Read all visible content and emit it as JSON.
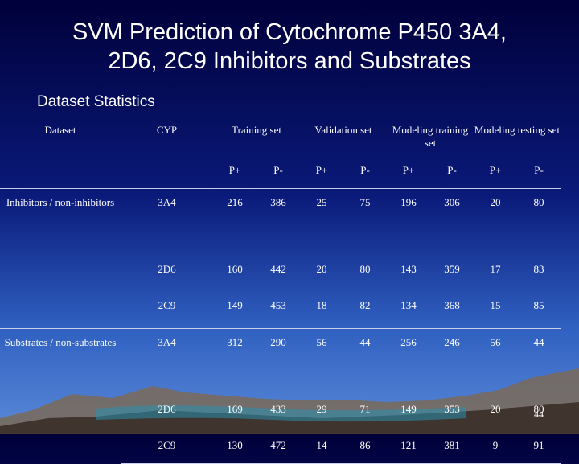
{
  "slide": {
    "title_line1": "SVM Prediction of Cytochrome P450 3A4,",
    "title_line2": "2D6, 2C9 Inhibitors and Substrates",
    "subtitle": "Dataset Statistics",
    "page_number": "44"
  },
  "table": {
    "headers": {
      "dataset": "Dataset",
      "cyp": "CYP",
      "training": "Training set",
      "validation": "Validation set",
      "modeling_training": "Modeling training set",
      "modeling_testing": "Modeling testing set"
    },
    "subheaders": [
      "P+",
      "P-",
      "P+",
      "P-",
      "P+",
      "P-",
      "P+",
      "P-"
    ],
    "groups": [
      {
        "label": "Inhibitors / non-inhibitors",
        "rows": [
          {
            "cyp": "3A4",
            "values": [
              "216",
              "386",
              "25",
              "75",
              "196",
              "306",
              "20",
              "80"
            ]
          },
          {
            "cyp": "2D6",
            "values": [
              "160",
              "442",
              "20",
              "80",
              "143",
              "359",
              "17",
              "83"
            ]
          },
          {
            "cyp": "2C9",
            "values": [
              "149",
              "453",
              "18",
              "82",
              "134",
              "368",
              "15",
              "85"
            ]
          }
        ]
      },
      {
        "label": "Substrates / non-substrates",
        "rows": [
          {
            "cyp": "3A4",
            "values": [
              "312",
              "290",
              "56",
              "44",
              "256",
              "246",
              "56",
              "44"
            ]
          },
          {
            "cyp": "2D6",
            "values": [
              "169",
              "433",
              "29",
              "71",
              "149",
              "353",
              "20",
              "80"
            ]
          },
          {
            "cyp": "2C9",
            "values": [
              "130",
              "472",
              "14",
              "86",
              "121",
              "381",
              "9",
              "91"
            ]
          }
        ]
      }
    ]
  }
}
